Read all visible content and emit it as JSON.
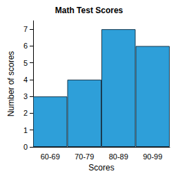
{
  "chart_data": {
    "type": "bar",
    "title": "Math Test Scores",
    "x_label": "Scores",
    "y_label": "Number of scores",
    "categories": [
      "60-69",
      "70-79",
      "80-89",
      "90-99"
    ],
    "values": [
      3,
      4,
      7,
      6
    ],
    "color": "#2e9fd9",
    "ylim": [
      0,
      7.5
    ],
    "yticks": [
      0,
      1,
      2,
      3,
      4,
      5,
      6,
      7
    ],
    "grid": false
  }
}
